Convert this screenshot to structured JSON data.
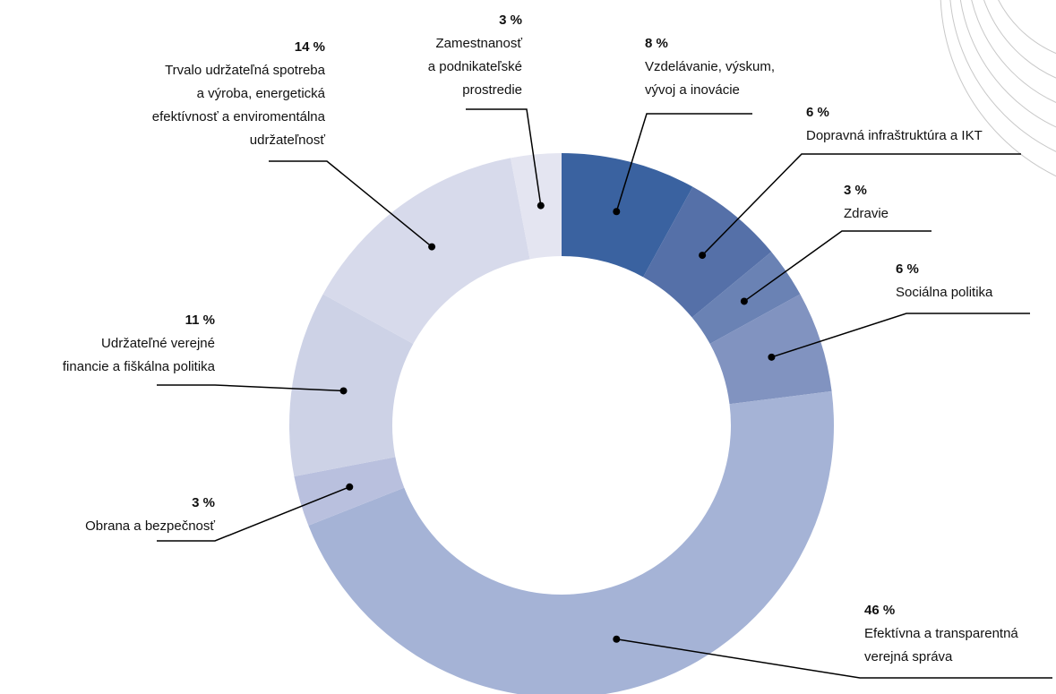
{
  "chart_data": {
    "type": "donut",
    "categories": [
      "Vzdelávanie, výskum,\nvývoj a inovácie",
      "Dopravná infraštruktúra a IKT",
      "Zdravie",
      "Sociálna politika",
      "Efektívna a transparentná\nverejná správa",
      "Obrana a bezpečnosť",
      "Udržateľné verejné\nfinancie a fiškálna politika",
      "Trvalo udržateľná spotreba\na výroba, energetická\nefektívnosť a enviromentálna\nudržateľnosť",
      "Zamestnanosť\na podnikateľské\nprostredie"
    ],
    "values": [
      8,
      6,
      3,
      6,
      46,
      3,
      11,
      14,
      3
    ],
    "value_labels": [
      "8 %",
      "6 %",
      "3 %",
      "6 %",
      "46 %",
      "3 %",
      "11 %",
      "14 %",
      "3 %"
    ],
    "colors": [
      "#3a62a0",
      "#5570a8",
      "#6a82b4",
      "#8193c0",
      "#a5b3d6",
      "#b9c0de",
      "#cdd2e6",
      "#d7daeb",
      "#e4e5f1"
    ]
  }
}
